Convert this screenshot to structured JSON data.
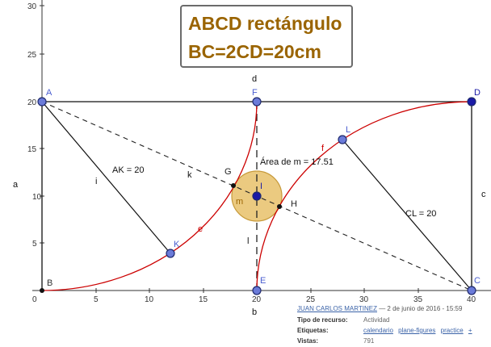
{
  "title": {
    "line1": "ABCD rectángulo",
    "line2": "BC=2CD=20cm"
  },
  "axes": {
    "x_ticks": [
      "0",
      "5",
      "10",
      "15",
      "20",
      "25",
      "30",
      "35",
      "40"
    ],
    "y_ticks": [
      "30",
      "25",
      "20",
      "15",
      "10",
      "5"
    ]
  },
  "points": {
    "A": "A",
    "B": "B",
    "C": "C",
    "D": "D",
    "E": "E",
    "F": "F",
    "G": "G",
    "H": "H",
    "I": "I",
    "K": "K",
    "L": "L"
  },
  "labels": {
    "side_a": "a",
    "side_b": "b",
    "side_c": "c",
    "side_d": "d",
    "seg_i": "i",
    "seg_k": "k",
    "seg_l": "l",
    "arc_e": "e",
    "arc_f": "f",
    "circle_m": "m",
    "ak": "AK = 20",
    "cl": "CL = 20",
    "area": "Área de m = 17.51"
  },
  "meta": {
    "author": "JUAN CARLOS MARTINEZ",
    "date": " — 2 de junio de 2016 - 15:59",
    "rows": [
      {
        "key": "Tipo de recurso:",
        "value": "Actividad"
      },
      {
        "key": "Etiquetas:",
        "tags": [
          "calendario",
          "plane-figures",
          "practice",
          "+"
        ]
      },
      {
        "key": "Vistas:",
        "value": "791"
      }
    ]
  },
  "colors": {
    "point_fill": "#6b7bd9",
    "point_stroke": "#1f2a6e",
    "curve": "#cc0000",
    "circle_fill": "#e8c16a",
    "title_text": "#9a6400"
  }
}
